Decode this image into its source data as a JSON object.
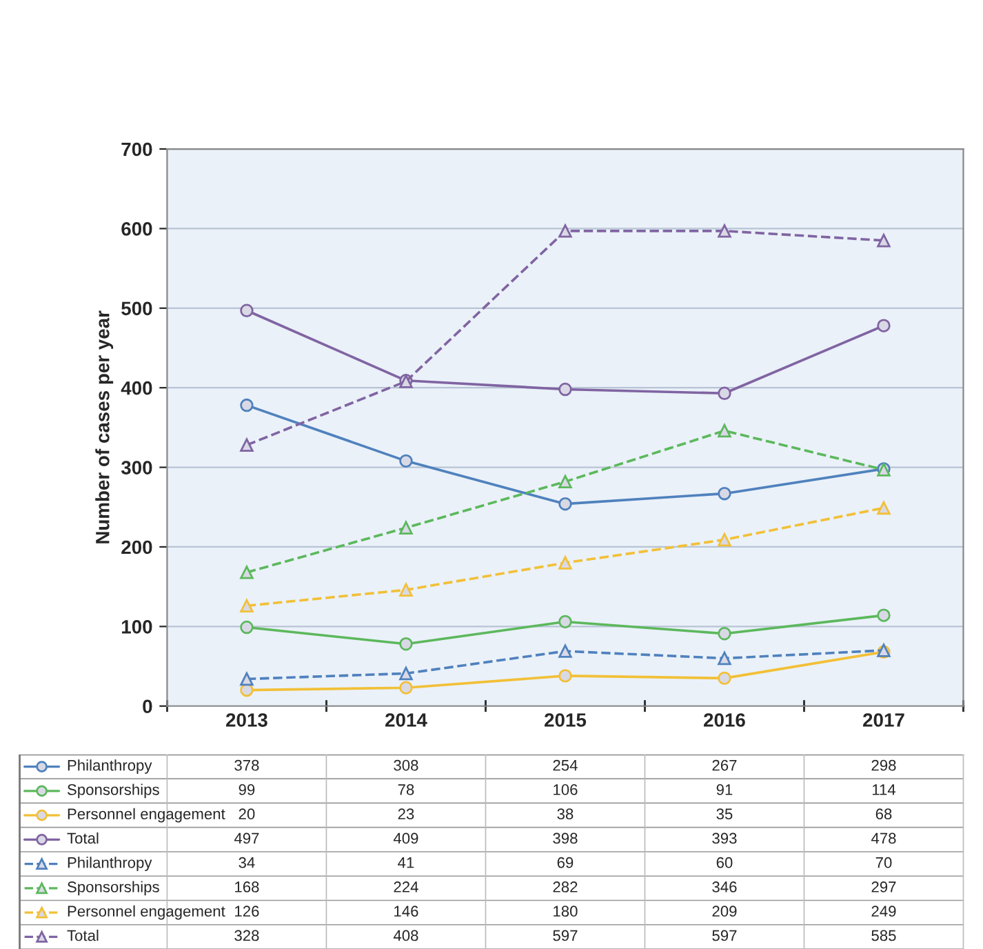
{
  "chart_data": {
    "type": "line",
    "ylabel": "Number of cases per year",
    "categories": [
      "2013",
      "2014",
      "2015",
      "2016",
      "2017"
    ],
    "ylim": [
      0,
      700
    ],
    "yticks": [
      0,
      100,
      200,
      300,
      400,
      500,
      600,
      700
    ],
    "grid": "y",
    "legend": "bottom",
    "data_labels": true,
    "series": [
      {
        "name": "Philanthropy",
        "color": "#4f81bd",
        "marker": "circle",
        "line_style": "solid",
        "values": [
          378,
          308,
          254,
          267,
          298
        ]
      },
      {
        "name": "Sponsorships",
        "color": "#5cb85c",
        "marker": "circle",
        "line_style": "solid",
        "values": [
          99,
          78,
          106,
          91,
          114
        ]
      },
      {
        "name": "Personnel engagement",
        "color": "#f2c037",
        "marker": "circle",
        "line_style": "solid",
        "values": [
          20,
          23,
          38,
          35,
          68
        ]
      },
      {
        "name": "Total",
        "color": "#8064a2",
        "marker": "circle",
        "line_style": "solid",
        "values": [
          497,
          409,
          398,
          393,
          478
        ]
      },
      {
        "name": "Philanthropy",
        "color": "#4f81bd",
        "marker": "triangle",
        "line_style": "dashed",
        "values": [
          34,
          41,
          69,
          60,
          70
        ]
      },
      {
        "name": "Sponsorships",
        "color": "#5cb85c",
        "marker": "triangle",
        "line_style": "dashed",
        "values": [
          168,
          224,
          282,
          346,
          297
        ]
      },
      {
        "name": "Personnel engagement",
        "color": "#f2c037",
        "marker": "triangle",
        "line_style": "dashed",
        "values": [
          126,
          146,
          180,
          209,
          249
        ]
      },
      {
        "name": "Total",
        "color": "#8064a2",
        "marker": "triangle",
        "line_style": "dashed",
        "values": [
          328,
          408,
          597,
          597,
          585
        ]
      }
    ]
  }
}
